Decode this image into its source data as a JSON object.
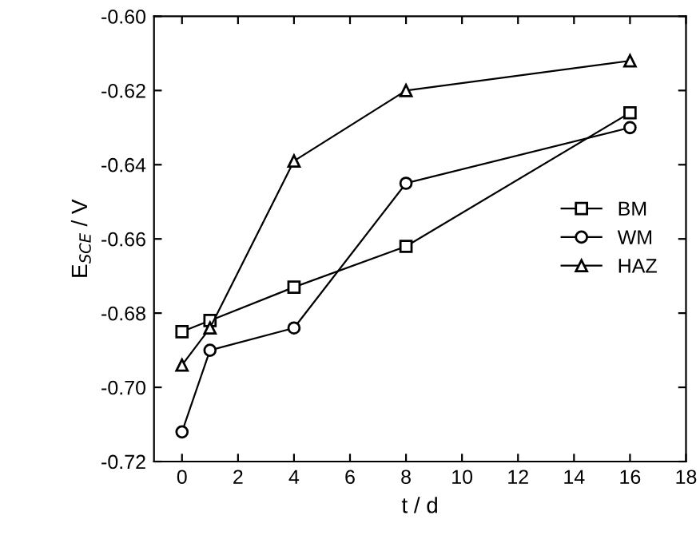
{
  "chart_data": {
    "type": "line",
    "xlabel": "t / d",
    "ylabel": "E$_{SCE}$ / V",
    "xlim": [
      -1,
      18
    ],
    "ylim": [
      -0.72,
      -0.6
    ],
    "xticks": [
      0,
      2,
      4,
      6,
      8,
      10,
      12,
      14,
      16,
      18
    ],
    "yticks": [
      {
        "value": -0.72,
        "label": "-0.72"
      },
      {
        "value": -0.7,
        "label": "-0.70"
      },
      {
        "value": -0.68,
        "label": "-0.68"
      },
      {
        "value": -0.66,
        "label": "-0.66"
      },
      {
        "value": -0.64,
        "label": "-0.64"
      },
      {
        "value": -0.62,
        "label": "-0.62"
      },
      {
        "value": -0.6,
        "label": "-0.60"
      }
    ],
    "x": [
      0,
      1,
      4,
      8,
      16
    ],
    "series": [
      {
        "name": "BM",
        "color": "#000000",
        "marker": "square",
        "values": [
          -0.685,
          -0.682,
          -0.673,
          -0.662,
          -0.626
        ]
      },
      {
        "name": "WM",
        "color": "#000000",
        "marker": "circle",
        "values": [
          -0.712,
          -0.69,
          -0.684,
          -0.645,
          -0.63
        ]
      },
      {
        "name": "HAZ",
        "color": "#000000",
        "marker": "triangle",
        "values": [
          -0.694,
          -0.684,
          -0.639,
          -0.62,
          -0.612
        ]
      }
    ],
    "grid": false,
    "legend": "right",
    "line_style": "solid"
  }
}
